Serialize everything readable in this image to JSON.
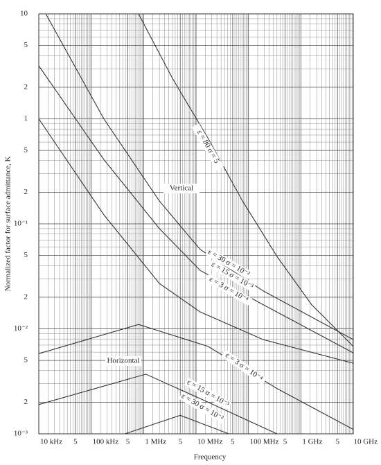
{
  "chart_data": {
    "type": "line",
    "x_label": "Frequency",
    "y_label": "Normalized factor for surface admittance, K",
    "log_x": true,
    "log_y": true,
    "grid": true,
    "minor_grid": true,
    "xlim": [
      10000,
      10000000000
    ],
    "ylim": [
      0.001,
      10
    ],
    "xticks": [
      {
        "value": 10000,
        "label": "10 kHz"
      },
      {
        "value": 50000,
        "label": "5"
      },
      {
        "value": 100000,
        "label": "100 kHz"
      },
      {
        "value": 500000,
        "label": "5"
      },
      {
        "value": 1000000,
        "label": "1 MHz"
      },
      {
        "value": 5000000,
        "label": "5"
      },
      {
        "value": 10000000,
        "label": "10 MHz"
      },
      {
        "value": 50000000,
        "label": "5"
      },
      {
        "value": 100000000,
        "label": "100 MHz"
      },
      {
        "value": 500000000,
        "label": "5"
      },
      {
        "value": 1000000000,
        "label": "1 GHz"
      },
      {
        "value": 5000000000,
        "label": "5"
      },
      {
        "value": 10000000000,
        "label": "10 GHz"
      }
    ],
    "yticks": [
      10,
      5,
      2,
      1,
      {
        "value": 0.5,
        "label": "5"
      },
      {
        "value": 0.2,
        "label": "2"
      },
      {
        "value": 0.1,
        "label": "10⁻¹"
      },
      {
        "value": 0.05,
        "label": "5"
      },
      {
        "value": 0.02,
        "label": "2"
      },
      {
        "value": 0.01,
        "label": "10⁻²"
      },
      {
        "value": 0.005,
        "label": "5"
      },
      {
        "value": 0.002,
        "label": "2"
      },
      {
        "value": 0.001,
        "label": "10⁻³"
      }
    ],
    "annotations": [
      "Vertical",
      "Horizontal"
    ],
    "series": [
      {
        "name": "ε = 80   σ = 5",
        "color": "#333333",
        "x": [
          800000,
          3600000,
          17000000,
          77000000,
          350000000,
          1600000000,
          10000000000
        ],
        "values": [
          10,
          2.4,
          0.65,
          0.165,
          0.049,
          0.017,
          0.0068
        ]
      },
      {
        "name": "ε = 30   σ = 10⁻²",
        "color": "#333333",
        "x": [
          13600,
          174000,
          2000000,
          12000000,
          190000000,
          10000000000
        ],
        "values": [
          10,
          1.0,
          0.165,
          0.057,
          0.023,
          0.0079
        ]
      },
      {
        "name": "ε = 15   σ = 10⁻³",
        "color": "#333333",
        "x": [
          10000,
          174000,
          2000000,
          12000000,
          190000000,
          10000000000
        ],
        "values": [
          3.2,
          0.41,
          0.09,
          0.036,
          0.017,
          0.0059
        ]
      },
      {
        "name": "ε = 3   σ = 10⁻⁴",
        "color": "#333333",
        "x": [
          10000,
          174000,
          2000000,
          12000000,
          190000000,
          10000000000
        ],
        "values": [
          1.0,
          0.122,
          0.027,
          0.0145,
          0.0079,
          0.0047
        ]
      },
      {
        "name": "ε = 3   σ = 10⁻⁴",
        "color": "#333333",
        "x": [
          10000,
          800000,
          17000000,
          350000000,
          10000000000
        ],
        "values": [
          0.0058,
          0.011,
          0.0068,
          0.0027,
          0.0011
        ]
      },
      {
        "name": "ε = 15   σ = 10⁻³",
        "color": "#333333",
        "x": [
          10000,
          1100000,
          17000000,
          350000000
        ],
        "values": [
          0.0019,
          0.0037,
          0.002,
          0.001
        ]
      },
      {
        "name": "ε = 30   σ = 10⁻²",
        "color": "#333333",
        "x": [
          440000,
          5000000,
          42000000
        ],
        "values": [
          0.001,
          0.0015,
          0.001
        ]
      }
    ]
  }
}
